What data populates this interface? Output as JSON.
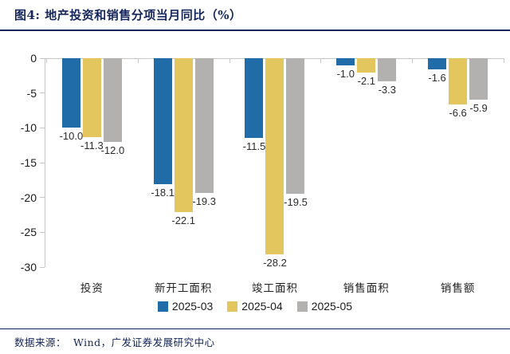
{
  "title": "图4:  地产投资和销售分项当月同比（%）",
  "source": "数据来源：  Wind，广发证券发展研究中心",
  "colors": {
    "navy": "#13255A",
    "axis": "#C6C6C6",
    "series_blue": "#1F6CA8",
    "series_yellow": "#E4C65F",
    "series_gray": "#B2B1B0"
  },
  "chart_data": {
    "type": "bar",
    "title": "地产投资和销售分项当月同比（%）",
    "categories": [
      "投资",
      "新开工面积",
      "竣工面积",
      "销售面积",
      "销售额"
    ],
    "series": [
      {
        "name": "2025-03",
        "color": "#1F6CA8",
        "values": [
          -10.0,
          -18.1,
          -11.5,
          -1.0,
          -1.6
        ]
      },
      {
        "name": "2025-04",
        "color": "#E4C65F",
        "values": [
          -11.3,
          -22.1,
          -28.2,
          -2.1,
          -6.6
        ]
      },
      {
        "name": "2025-05",
        "color": "#B2B1B0",
        "values": [
          -12.0,
          -19.3,
          -19.5,
          -3.3,
          -5.9
        ]
      }
    ],
    "xlabel": "",
    "ylabel": "",
    "ylim": [
      -30,
      0
    ],
    "yticks": [
      0,
      -5,
      -10,
      -15,
      -20,
      -25,
      -30
    ],
    "grid": false,
    "legend_position": "bottom",
    "value_labels": true
  }
}
